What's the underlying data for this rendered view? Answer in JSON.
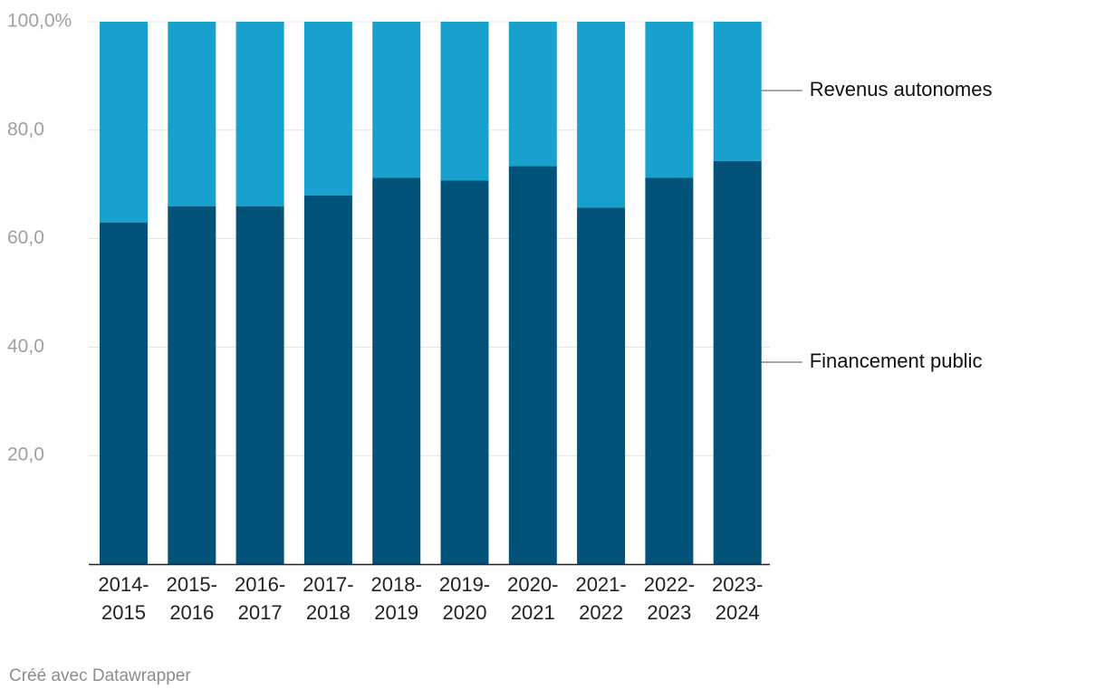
{
  "chart_data": {
    "type": "bar",
    "stacked": true,
    "categories": [
      "2014-2015",
      "2015-2016",
      "2016-2017",
      "2017-2018",
      "2018-2019",
      "2019-2020",
      "2020-2021",
      "2021-2022",
      "2022-2023",
      "2023-2024"
    ],
    "category_lines": [
      [
        "2014-",
        "2015"
      ],
      [
        "2015-",
        "2016"
      ],
      [
        "2016-",
        "2017"
      ],
      [
        "2017-",
        "2018"
      ],
      [
        "2018-",
        "2019"
      ],
      [
        "2019-",
        "2020"
      ],
      [
        "2020-",
        "2021"
      ],
      [
        "2021-",
        "2022"
      ],
      [
        "2022-",
        "2023"
      ],
      [
        "2023-",
        "2024"
      ]
    ],
    "series": [
      {
        "name": "Financement public",
        "color": "#03527a",
        "values": [
          63,
          66,
          66,
          68,
          71.2,
          70.7,
          73.4,
          65.7,
          71.2,
          74.3
        ]
      },
      {
        "name": "Revenus autonomes",
        "color": "#18a1cd",
        "values": [
          37,
          34,
          34,
          32,
          28.8,
          29.3,
          26.6,
          34.3,
          28.8,
          25.7
        ]
      }
    ],
    "ylim": [
      0,
      100
    ],
    "yticks": [
      20,
      40,
      60,
      80,
      100
    ],
    "ytick_labels": [
      "20,0",
      "40,0",
      "60,0",
      "80,0",
      "100,0%"
    ],
    "grid": true,
    "legend_position": "right-inline",
    "xlabel": "",
    "ylabel": "",
    "title": ""
  },
  "credit": "Créé avec Datawrapper"
}
